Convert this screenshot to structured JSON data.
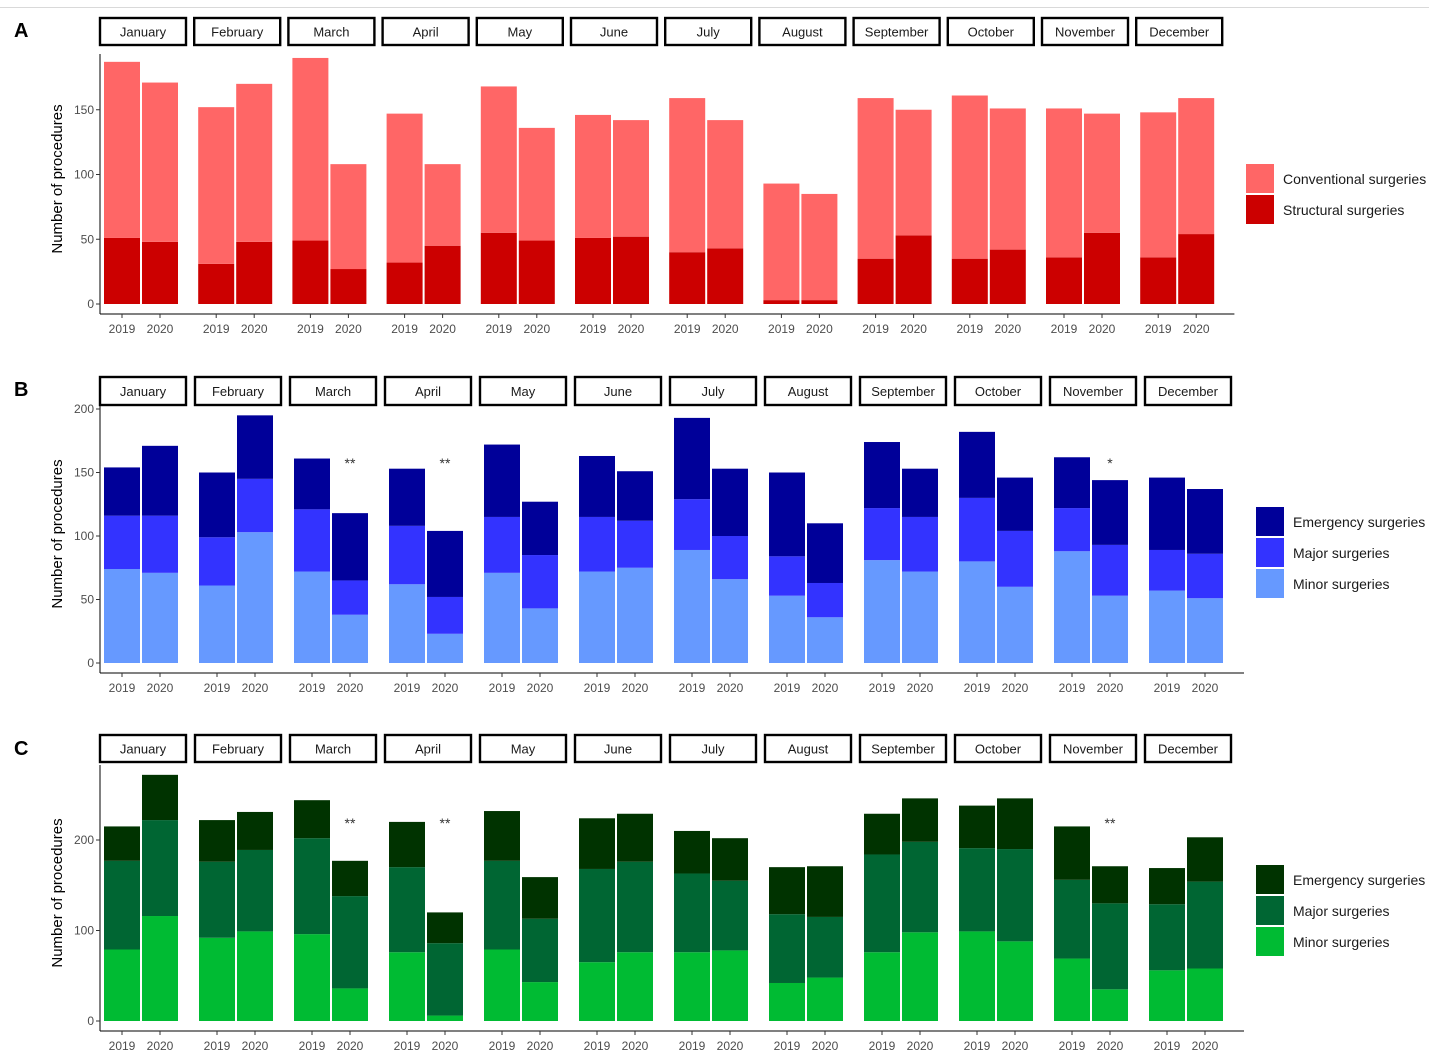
{
  "chart_data": [
    {
      "type": "bar",
      "panel_label": "A",
      "stacked": true,
      "facets": [
        "January",
        "February",
        "March",
        "April",
        "May",
        "June",
        "July",
        "August",
        "September",
        "October",
        "November",
        "December"
      ],
      "categories": [
        "2019",
        "2020"
      ],
      "ylabel": "Number of procedures",
      "ylim": [
        0,
        190
      ],
      "yticks": [
        0,
        50,
        100,
        150
      ],
      "legend_position": "right",
      "series": [
        {
          "name": "Structural surgeries",
          "color": "#cc0000",
          "values": [
            [
              51,
              48
            ],
            [
              31,
              48
            ],
            [
              49,
              27
            ],
            [
              32,
              45
            ],
            [
              55,
              49
            ],
            [
              51,
              52
            ],
            [
              40,
              43
            ],
            [
              3,
              3
            ],
            [
              35,
              53
            ],
            [
              35,
              42
            ],
            [
              36,
              55
            ],
            [
              36,
              54
            ]
          ]
        },
        {
          "name": "Conventional surgeries",
          "color": "#ff6666",
          "values": [
            [
              136,
              123
            ],
            [
              121,
              122
            ],
            [
              141,
              81
            ],
            [
              115,
              63
            ],
            [
              113,
              87
            ],
            [
              95,
              90
            ],
            [
              119,
              99
            ],
            [
              90,
              82
            ],
            [
              124,
              97
            ],
            [
              126,
              109
            ],
            [
              115,
              92
            ],
            [
              112,
              105
            ]
          ]
        }
      ],
      "legend_order": [
        "Conventional surgeries",
        "Structural surgeries"
      ],
      "annotations": []
    },
    {
      "type": "bar",
      "panel_label": "B",
      "stacked": true,
      "facets": [
        "January",
        "February",
        "March",
        "April",
        "May",
        "June",
        "July",
        "August",
        "September",
        "October",
        "November",
        "December"
      ],
      "categories": [
        "2019",
        "2020"
      ],
      "ylabel": "Number of procedures",
      "ylim": [
        0,
        200
      ],
      "yticks": [
        0,
        50,
        100,
        150,
        200
      ],
      "legend_position": "right",
      "series": [
        {
          "name": "Minor surgeries",
          "color": "#6699ff",
          "values": [
            [
              74,
              71
            ],
            [
              61,
              103
            ],
            [
              72,
              38
            ],
            [
              62,
              23
            ],
            [
              71,
              43
            ],
            [
              72,
              75
            ],
            [
              89,
              66
            ],
            [
              53,
              36
            ],
            [
              81,
              72
            ],
            [
              80,
              60
            ],
            [
              88,
              53
            ],
            [
              57,
              51
            ]
          ]
        },
        {
          "name": "Major surgeries",
          "color": "#3333ff",
          "values": [
            [
              42,
              45
            ],
            [
              38,
              42
            ],
            [
              49,
              27
            ],
            [
              46,
              29
            ],
            [
              44,
              42
            ],
            [
              43,
              37
            ],
            [
              40,
              34
            ],
            [
              31,
              27
            ],
            [
              41,
              43
            ],
            [
              50,
              44
            ],
            [
              34,
              40
            ],
            [
              32,
              35
            ]
          ]
        },
        {
          "name": "Emergency surgeries",
          "color": "#000099",
          "values": [
            [
              38,
              55
            ],
            [
              51,
              50
            ],
            [
              40,
              53
            ],
            [
              45,
              52
            ],
            [
              57,
              42
            ],
            [
              48,
              39
            ],
            [
              64,
              53
            ],
            [
              66,
              47
            ],
            [
              52,
              38
            ],
            [
              52,
              42
            ],
            [
              40,
              51
            ],
            [
              57,
              51
            ]
          ]
        }
      ],
      "legend_order": [
        "Emergency surgeries",
        "Major surgeries",
        "Minor surgeries"
      ],
      "annotations": [
        {
          "facet": "March",
          "category": "2020",
          "text": "**"
        },
        {
          "facet": "April",
          "category": "2020",
          "text": "**"
        },
        {
          "facet": "November",
          "category": "2020",
          "text": "*"
        }
      ]
    },
    {
      "type": "bar",
      "panel_label": "C",
      "stacked": true,
      "facets": [
        "January",
        "February",
        "March",
        "April",
        "May",
        "June",
        "July",
        "August",
        "September",
        "October",
        "November",
        "December"
      ],
      "categories": [
        "2019",
        "2020"
      ],
      "ylabel": "Number of procedures",
      "ylim": [
        0,
        275
      ],
      "yticks": [
        0,
        100,
        200
      ],
      "legend_position": "right",
      "series": [
        {
          "name": "Minor surgeries",
          "color": "#00bb33",
          "values": [
            [
              79,
              116
            ],
            [
              92,
              99
            ],
            [
              96,
              36
            ],
            [
              76,
              6
            ],
            [
              79,
              43
            ],
            [
              65,
              76
            ],
            [
              76,
              78
            ],
            [
              42,
              48
            ],
            [
              76,
              98
            ],
            [
              99,
              88
            ],
            [
              69,
              35
            ],
            [
              56,
              58
            ]
          ]
        },
        {
          "name": "Major surgeries",
          "color": "#006633",
          "values": [
            [
              98,
              106
            ],
            [
              84,
              90
            ],
            [
              106,
              102
            ],
            [
              94,
              80
            ],
            [
              98,
              70
            ],
            [
              103,
              100
            ],
            [
              87,
              77
            ],
            [
              76,
              67
            ],
            [
              108,
              100
            ],
            [
              92,
              102
            ],
            [
              87,
              95
            ],
            [
              73,
              96
            ]
          ]
        },
        {
          "name": "Emergency surgeries",
          "color": "#003300",
          "values": [
            [
              38,
              50
            ],
            [
              46,
              42
            ],
            [
              42,
              39
            ],
            [
              50,
              34
            ],
            [
              55,
              46
            ],
            [
              56,
              53
            ],
            [
              47,
              47
            ],
            [
              52,
              56
            ],
            [
              45,
              48
            ],
            [
              47,
              56
            ],
            [
              59,
              41
            ],
            [
              40,
              49
            ]
          ]
        }
      ],
      "legend_order": [
        "Emergency surgeries",
        "Major surgeries",
        "Minor surgeries"
      ],
      "annotations": [
        {
          "facet": "March",
          "category": "2020",
          "text": "**"
        },
        {
          "facet": "April",
          "category": "2020",
          "text": "**"
        },
        {
          "facet": "November",
          "category": "2020",
          "text": "**"
        }
      ]
    }
  ]
}
